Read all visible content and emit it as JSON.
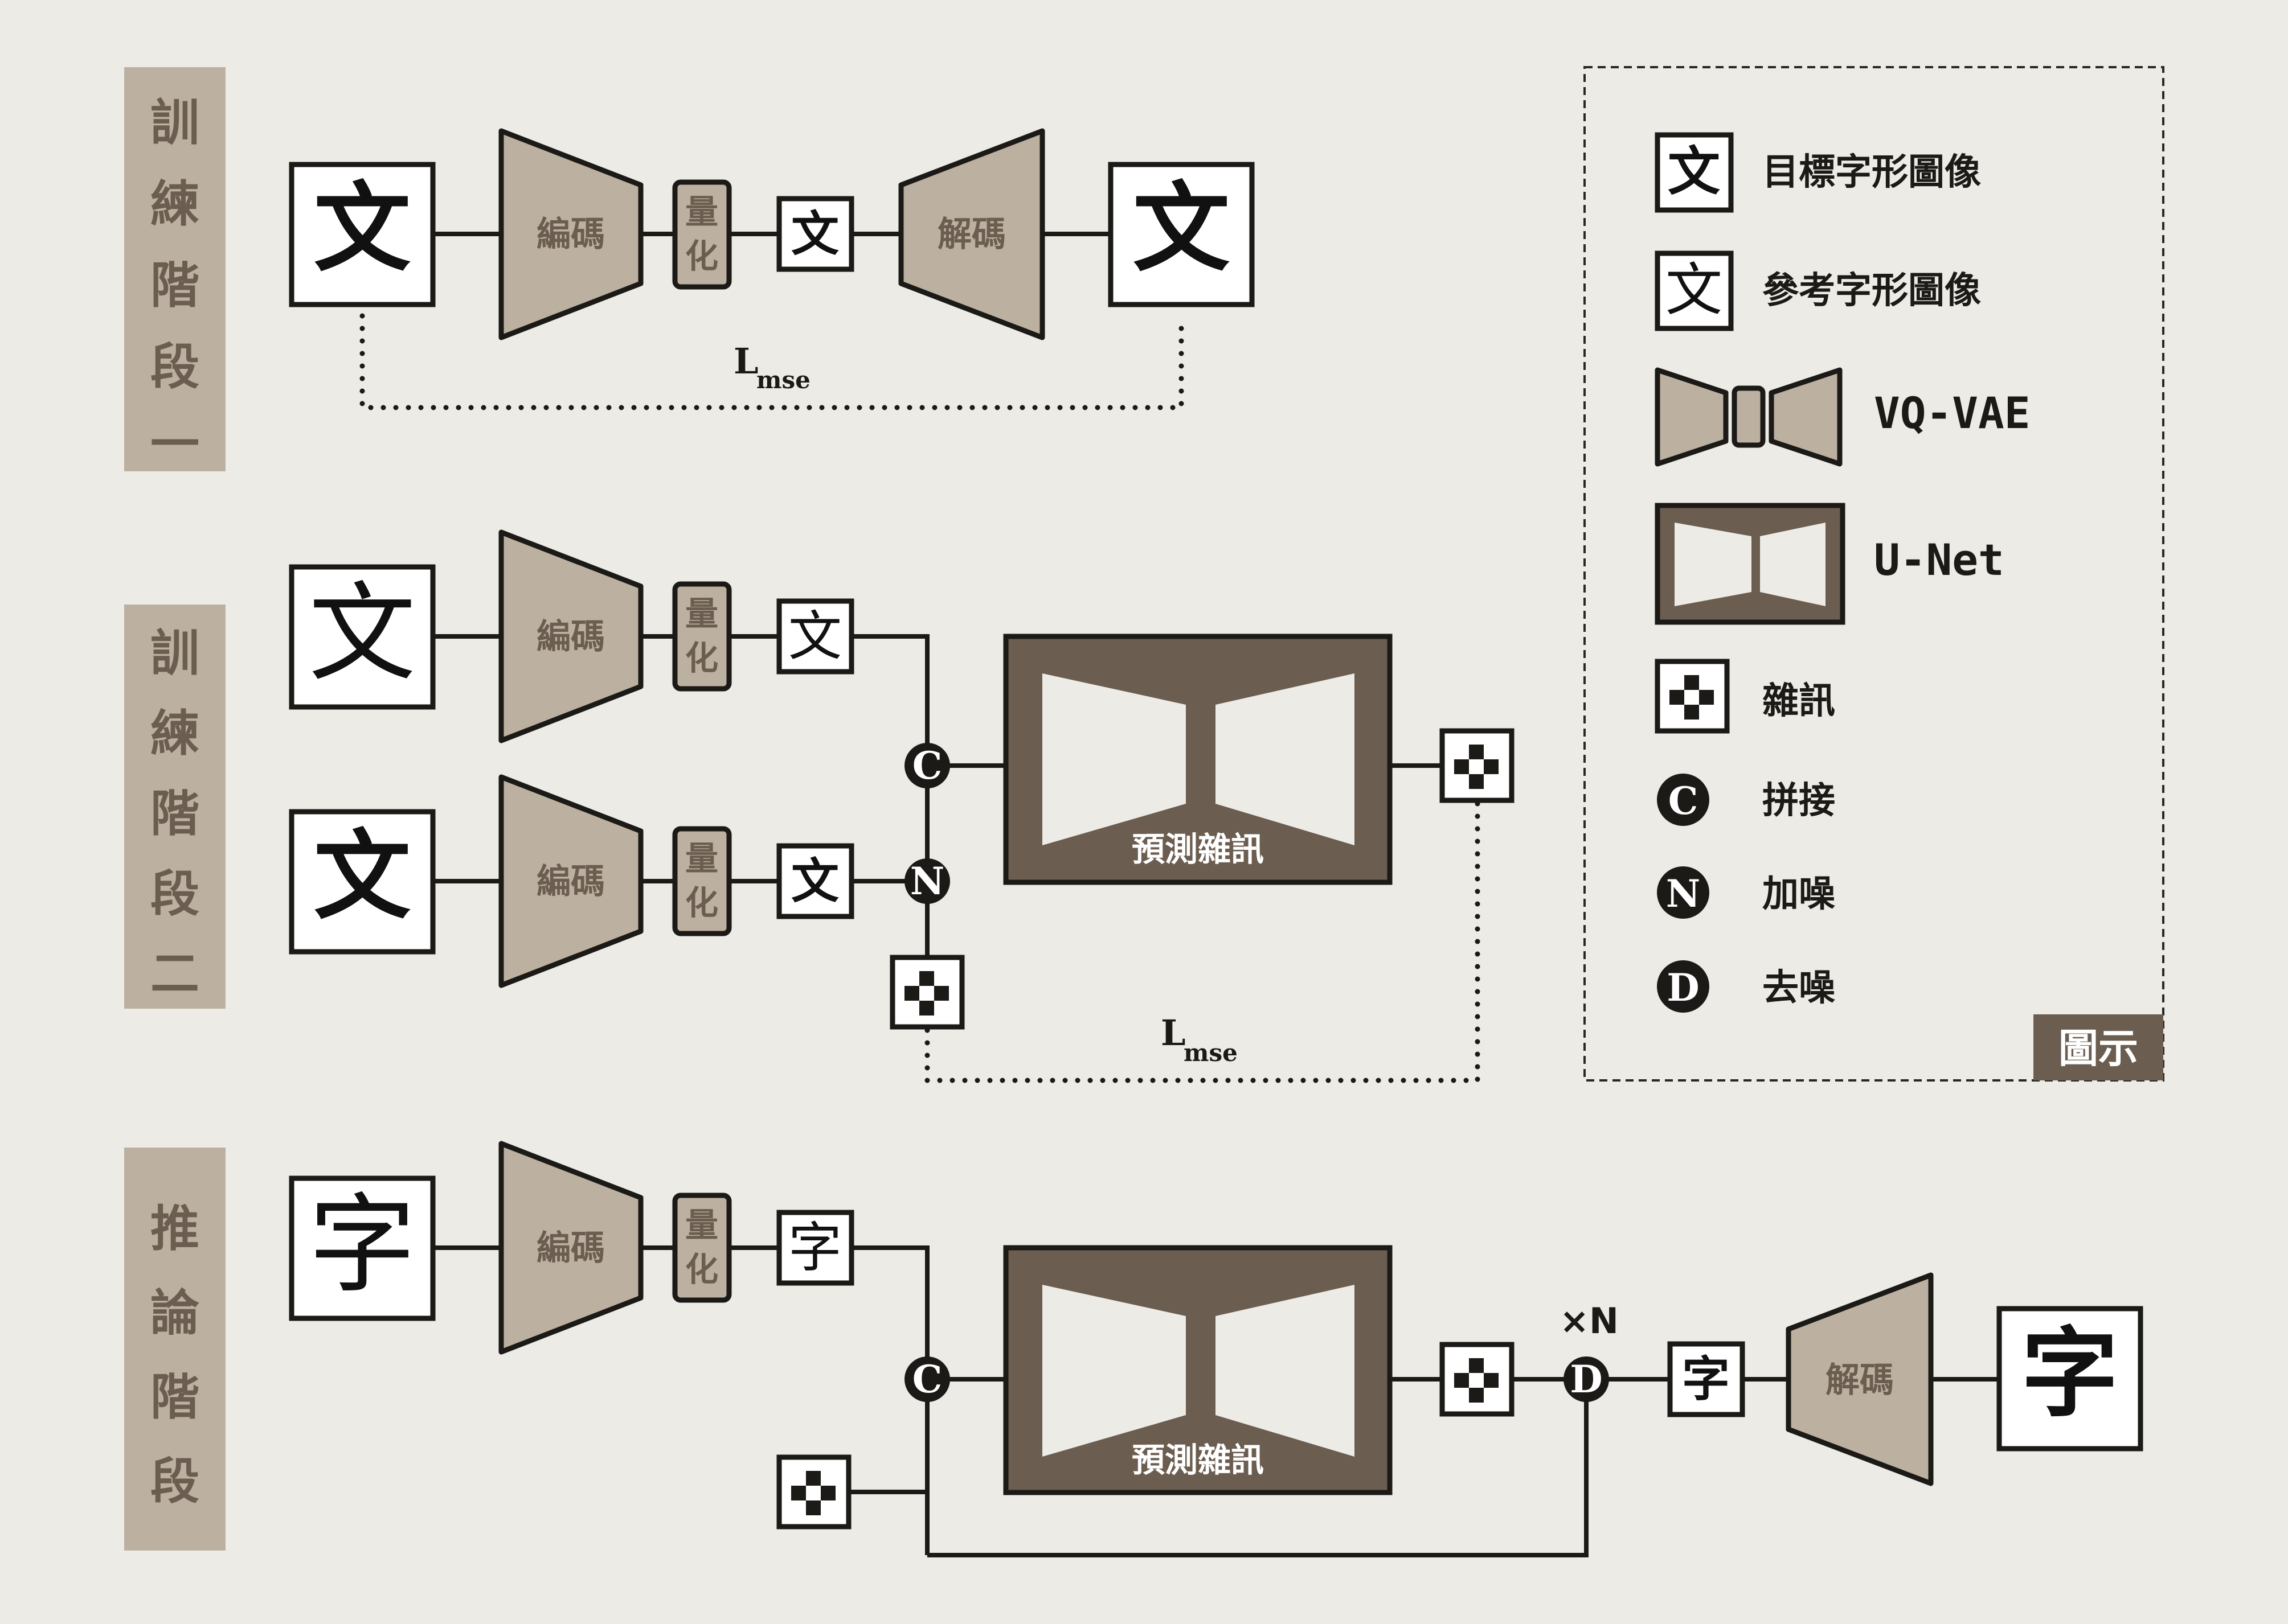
{
  "stages": {
    "stage1": "訓練階段一",
    "stage2": "訓練階段二",
    "inference": "推論階段"
  },
  "blocks": {
    "encoder": "編碼",
    "decoder": "解碼",
    "quantize": "量化",
    "unet_label": "預測雜訊"
  },
  "glyphs": {
    "wen": "文",
    "zi": "字"
  },
  "ops": {
    "concat": "C",
    "add_noise": "N",
    "denoise": "D",
    "repeat": "×N"
  },
  "loss": {
    "main": "L",
    "sub": "mse"
  },
  "legend": {
    "title": "圖示",
    "target_glyph": "目標字形圖像",
    "reference_glyph": "參考字形圖像",
    "vqvae": "VQ-VAE",
    "unet": "U-Net",
    "noise": "雜訊",
    "concat": "拼接",
    "add_noise": "加噪",
    "denoise": "去噪"
  },
  "colors": {
    "background": "#ecebe6",
    "tan": "#bcb0a0",
    "brown": "#6b5d4f",
    "ink": "#1c1a17"
  }
}
